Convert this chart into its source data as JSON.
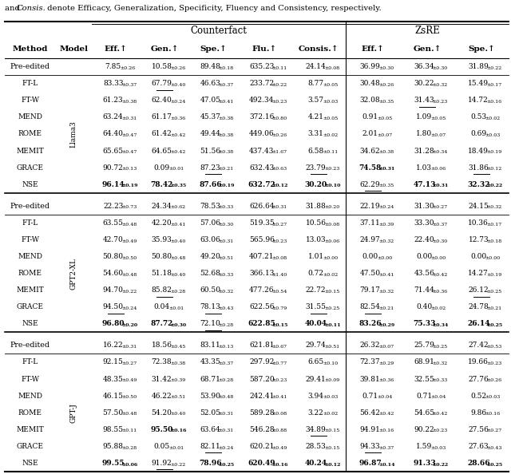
{
  "caption": "and Consis.  denote Efficacy, Generalization, Specificity, Fluency and Consistency, respectively.",
  "col_headers": [
    "Eff.↑",
    "Gen.↑",
    "Spe.↑",
    "Flu.↑",
    "Consis.↑",
    "Eff.↑",
    "Gen.↑",
    "Spe.↑"
  ],
  "row_groups": [
    {
      "model": "Llama3",
      "pre_edited": [
        "7.85",
        "0.26",
        "10.58",
        "0.26",
        "89.48",
        "0.18",
        "635.23",
        "0.11",
        "24.14",
        "0.08",
        "36.99",
        "0.30",
        "36.34",
        "0.30",
        "31.89",
        "0.22"
      ],
      "methods": [
        {
          "name": "FT-L",
          "vals": [
            "83.33",
            "0.37",
            "67.79",
            "0.40",
            "46.63",
            "0.37",
            "233.72",
            "0.22",
            "8.77",
            "0.05",
            "30.48",
            "0.26",
            "30.22",
            "0.32",
            "15.49",
            "0.17"
          ],
          "bold": [],
          "ul": [
            1
          ]
        },
        {
          "name": "FT-W",
          "vals": [
            "61.23",
            "0.38",
            "62.40",
            "0.24",
            "47.05",
            "0.41",
            "492.34",
            "0.23",
            "3.57",
            "0.03",
            "32.08",
            "0.35",
            "31.43",
            "0.23",
            "14.72",
            "0.16"
          ],
          "bold": [],
          "ul": [
            6
          ]
        },
        {
          "name": "MEND",
          "vals": [
            "63.24",
            "0.31",
            "61.17",
            "0.36",
            "45.37",
            "0.38",
            "372.16",
            "0.80",
            "4.21",
            "0.05",
            "0.91",
            "0.05",
            "1.09",
            "0.05",
            "0.53",
            "0.02"
          ],
          "bold": [],
          "ul": []
        },
        {
          "name": "ROME",
          "vals": [
            "64.40",
            "0.47",
            "61.42",
            "0.42",
            "49.44",
            "0.38",
            "449.06",
            "0.26",
            "3.31",
            "0.02",
            "2.01",
            "0.07",
            "1.80",
            "0.07",
            "0.69",
            "0.03"
          ],
          "bold": [],
          "ul": []
        },
        {
          "name": "MEMIT",
          "vals": [
            "65.65",
            "0.47",
            "64.65",
            "0.42",
            "51.56",
            "0.38",
            "437.43",
            "1.67",
            "6.58",
            "0.11",
            "34.62",
            "0.38",
            "31.28",
            "0.34",
            "18.49",
            "0.19"
          ],
          "bold": [],
          "ul": []
        },
        {
          "name": "GRACE",
          "vals": [
            "90.72",
            "0.13",
            "0.09",
            "0.01",
            "87.23",
            "0.21",
            "632.43",
            "0.63",
            "23.79",
            "0.23",
            "74.58",
            "0.31",
            "1.03",
            "0.06",
            "31.86",
            "0.12"
          ],
          "bold": [
            5
          ],
          "ul": [
            2,
            4,
            7
          ]
        },
        {
          "name": "NSE",
          "vals": [
            "96.14",
            "0.19",
            "78.42",
            "0.35",
            "87.66",
            "0.19",
            "632.72",
            "0.12",
            "30.20",
            "0.10",
            "62.29",
            "0.35",
            "47.13",
            "0.31",
            "32.32",
            "0.22"
          ],
          "bold": [
            0,
            1,
            2,
            3,
            4,
            6,
            7
          ],
          "ul": [
            5
          ]
        }
      ]
    },
    {
      "model": "GPT2-XL",
      "pre_edited": [
        "22.23",
        "0.73",
        "24.34",
        "0.62",
        "78.53",
        "0.33",
        "626.64",
        "0.31",
        "31.88",
        "0.20",
        "22.19",
        "0.24",
        "31.30",
        "0.27",
        "24.15",
        "0.32"
      ],
      "methods": [
        {
          "name": "FT-L",
          "vals": [
            "63.55",
            "0.48",
            "42.20",
            "0.41",
            "57.06",
            "0.30",
            "519.35",
            "0.27",
            "10.56",
            "0.08",
            "37.11",
            "0.39",
            "33.30",
            "0.37",
            "10.36",
            "0.17"
          ],
          "bold": [],
          "ul": []
        },
        {
          "name": "FT-W",
          "vals": [
            "42.70",
            "0.49",
            "35.93",
            "0.40",
            "63.06",
            "0.31",
            "565.96",
            "0.23",
            "13.03",
            "0.06",
            "24.97",
            "0.32",
            "22.40",
            "0.30",
            "12.73",
            "0.18"
          ],
          "bold": [],
          "ul": []
        },
        {
          "name": "MEND",
          "vals": [
            "50.80",
            "0.50",
            "50.80",
            "0.48",
            "49.20",
            "0.51",
            "407.21",
            "0.08",
            "1.01",
            "0.00",
            "0.00",
            "0.00",
            "0.00",
            "0.00",
            "0.00",
            "0.00"
          ],
          "bold": [],
          "ul": []
        },
        {
          "name": "ROME",
          "vals": [
            "54.60",
            "0.48",
            "51.18",
            "0.40",
            "52.68",
            "0.33",
            "366.13",
            "1.40",
            "0.72",
            "0.02",
            "47.50",
            "0.41",
            "43.56",
            "0.42",
            "14.27",
            "0.19"
          ],
          "bold": [],
          "ul": []
        },
        {
          "name": "MEMIT",
          "vals": [
            "94.70",
            "0.22",
            "85.82",
            "0.28",
            "60.50",
            "0.32",
            "477.26",
            "0.54",
            "22.72",
            "0.15",
            "79.17",
            "0.32",
            "71.44",
            "0.36",
            "26.12",
            "0.25"
          ],
          "bold": [],
          "ul": [
            1,
            7
          ]
        },
        {
          "name": "GRACE",
          "vals": [
            "94.50",
            "0.24",
            "0.04",
            "0.01",
            "78.13",
            "0.43",
            "622.56",
            "0.79",
            "31.55",
            "0.25",
            "82.54",
            "0.21",
            "0.40",
            "0.02",
            "24.78",
            "0.21"
          ],
          "bold": [],
          "ul": [
            0,
            2,
            4,
            5
          ]
        },
        {
          "name": "NSE",
          "vals": [
            "96.80",
            "0.20",
            "87.72",
            "0.30",
            "72.10",
            "0.28",
            "622.85",
            "0.15",
            "40.04",
            "0.11",
            "83.26",
            "0.29",
            "75.33",
            "0.34",
            "26.14",
            "0.25"
          ],
          "bold": [
            0,
            1,
            3,
            4,
            5,
            6,
            7
          ],
          "ul": [
            2
          ]
        }
      ]
    },
    {
      "model": "GPT-J",
      "pre_edited": [
        "16.22",
        "0.31",
        "18.56",
        "0.45",
        "83.11",
        "0.13",
        "621.81",
        "0.67",
        "29.74",
        "0.51",
        "26.32",
        "0.07",
        "25.79",
        "0.25",
        "27.42",
        "0.53"
      ],
      "methods": [
        {
          "name": "FT-L",
          "vals": [
            "92.15",
            "0.27",
            "72.38",
            "0.38",
            "43.35",
            "0.37",
            "297.92",
            "0.77",
            "6.65",
            "0.10",
            "72.37",
            "0.29",
            "68.91",
            "0.32",
            "19.66",
            "0.23"
          ],
          "bold": [],
          "ul": []
        },
        {
          "name": "FT-W",
          "vals": [
            "48.35",
            "0.49",
            "31.42",
            "0.39",
            "68.71",
            "0.28",
            "587.20",
            "0.23",
            "29.41",
            "0.09",
            "39.81",
            "0.36",
            "32.55",
            "0.33",
            "27.76",
            "0.26"
          ],
          "bold": [],
          "ul": []
        },
        {
          "name": "MEND",
          "vals": [
            "46.15",
            "0.50",
            "46.22",
            "0.51",
            "53.90",
            "0.48",
            "242.41",
            "0.41",
            "3.94",
            "0.03",
            "0.71",
            "0.04",
            "0.71",
            "0.04",
            "0.52",
            "0.03"
          ],
          "bold": [],
          "ul": []
        },
        {
          "name": "ROME",
          "vals": [
            "57.50",
            "0.48",
            "54.20",
            "0.40",
            "52.05",
            "0.31",
            "589.28",
            "0.08",
            "3.22",
            "0.02",
            "56.42",
            "0.42",
            "54.65",
            "0.42",
            "9.86",
            "0.16"
          ],
          "bold": [],
          "ul": []
        },
        {
          "name": "MEMIT",
          "vals": [
            "98.55",
            "0.11",
            "95.50",
            "0.16",
            "63.64",
            "0.31",
            "546.28",
            "0.88",
            "34.89",
            "0.15",
            "94.91",
            "0.16",
            "90.22",
            "0.23",
            "27.56",
            "0.27"
          ],
          "bold": [
            1
          ],
          "ul": [
            4
          ]
        },
        {
          "name": "GRACE",
          "vals": [
            "95.88",
            "0.28",
            "0.05",
            "0.01",
            "82.11",
            "0.24",
            "620.21",
            "0.49",
            "28.53",
            "0.15",
            "94.33",
            "0.37",
            "1.59",
            "0.03",
            "27.63",
            "0.43"
          ],
          "bold": [],
          "ul": [
            2,
            5
          ]
        },
        {
          "name": "NSE",
          "vals": [
            "99.55",
            "0.06",
            "91.92",
            "0.22",
            "78.96",
            "0.25",
            "620.49",
            "0.16",
            "40.24",
            "0.12",
            "96.87",
            "0.14",
            "91.33",
            "0.22",
            "28.66",
            "0.25"
          ],
          "bold": [
            0,
            2,
            3,
            4,
            5,
            6,
            7
          ],
          "ul": [
            1
          ]
        }
      ]
    }
  ]
}
